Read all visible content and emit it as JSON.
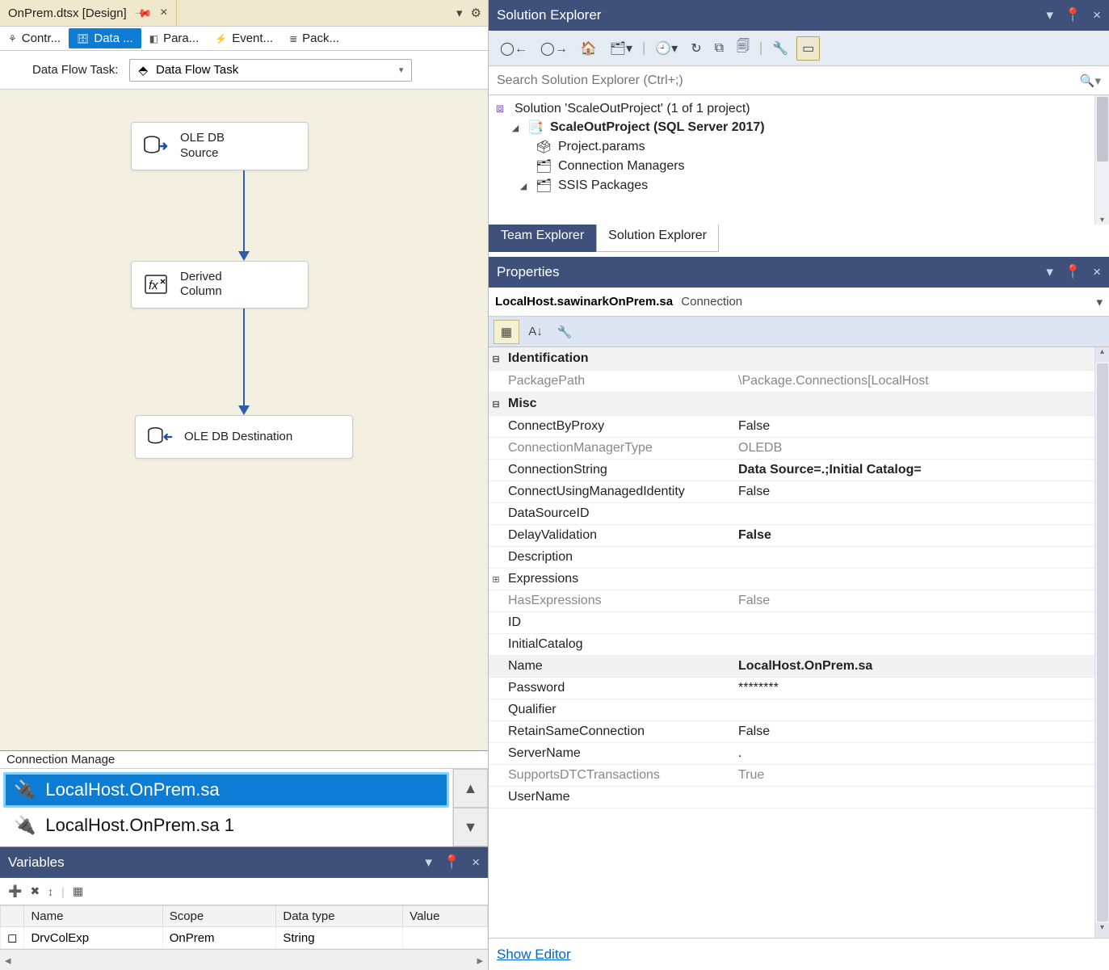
{
  "colors": {
    "panel_header": "#3f517a",
    "tab_active_bg": "#efe8cf",
    "selected_blue": "#0c7cd5",
    "canvas_bg": "#f3efe1",
    "arrow_blue": "#2d5ea8"
  },
  "doc_tab": {
    "title": "OnPrem.dtsx [Design]"
  },
  "design_tabs": [
    {
      "label": "Contr..."
    },
    {
      "label": "Data ...",
      "active": true
    },
    {
      "label": "Para..."
    },
    {
      "label": "Event..."
    },
    {
      "label": "Pack..."
    }
  ],
  "dft": {
    "label": "Data Flow Task:",
    "value": "Data Flow Task"
  },
  "nodes": {
    "source": "OLE DB\nSource",
    "derived": "Derived\nColumn",
    "dest": "OLE DB Destination"
  },
  "arrows": {
    "len1": 100,
    "len2": 160
  },
  "cm": {
    "header": "Connection Manage",
    "items": [
      {
        "label": "LocalHost.OnPrem.sa",
        "selected": true
      },
      {
        "label": "LocalHost.OnPrem.sa 1",
        "selected": false
      }
    ]
  },
  "variables": {
    "title": "Variables",
    "columns": [
      "Name",
      "Scope",
      "Data type",
      "Value"
    ],
    "rows": [
      {
        "name": "DrvColExp",
        "scope": "OnPrem",
        "type": "String",
        "value": ""
      }
    ]
  },
  "solution_explorer": {
    "title": "Solution Explorer",
    "search_placeholder": "Search Solution Explorer (Ctrl+;)",
    "tree": {
      "solution": "Solution 'ScaleOutProject' (1 of 1 project)",
      "project": "ScaleOutProject (SQL Server 2017)",
      "items": [
        "Project.params",
        "Connection Managers",
        "SSIS Packages"
      ]
    },
    "tabs": {
      "inactive": "Team Explorer",
      "active": "Solution Explorer"
    }
  },
  "properties": {
    "title": "Properties",
    "object_name": "LocalHost.sawinarkOnPrem.sa",
    "object_type": "Connection",
    "categories": {
      "identification": {
        "label": "Identification",
        "rows": [
          {
            "k": "PackagePath",
            "v": "\\Package.Connections[LocalHost",
            "readonly": true
          }
        ]
      },
      "misc": {
        "label": "Misc",
        "rows": [
          {
            "k": "ConnectByProxy",
            "v": "False"
          },
          {
            "k": "ConnectionManagerType",
            "v": "OLEDB",
            "readonly": true
          },
          {
            "k": "ConnectionString",
            "v": "Data Source=.;Initial Catalog=",
            "bold": true
          },
          {
            "k": "ConnectUsingManagedIdentity",
            "v": "False"
          },
          {
            "k": "DataSourceID",
            "v": ""
          },
          {
            "k": "DelayValidation",
            "v": "False",
            "bold": true
          },
          {
            "k": "Description",
            "v": ""
          },
          {
            "k": "Expressions",
            "v": "",
            "expand": true
          },
          {
            "k": "HasExpressions",
            "v": "False",
            "readonly": true
          },
          {
            "k": "ID",
            "v": ""
          },
          {
            "k": "InitialCatalog",
            "v": ""
          },
          {
            "k": "Name",
            "v": "LocalHost.OnPrem.sa",
            "bold": true,
            "namerow": true
          },
          {
            "k": "Password",
            "v": "********"
          },
          {
            "k": "Qualifier",
            "v": ""
          },
          {
            "k": "RetainSameConnection",
            "v": "False"
          },
          {
            "k": "ServerName",
            "v": "."
          },
          {
            "k": "SupportsDTCTransactions",
            "v": "True",
            "readonly": true
          },
          {
            "k": "UserName",
            "v": ""
          }
        ]
      }
    },
    "show_editor": "Show Editor"
  }
}
